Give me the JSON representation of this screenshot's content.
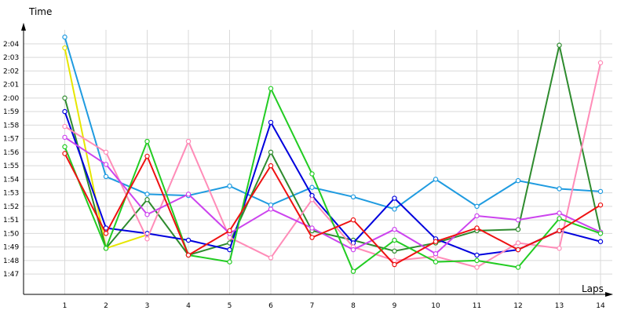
{
  "chart_data": {
    "type": "line",
    "xlabel": "Laps",
    "ylabel": "Time",
    "x": [
      1,
      2,
      3,
      4,
      5,
      6,
      7,
      8,
      9,
      10,
      11,
      12,
      13,
      14
    ],
    "xlim": [
      0,
      14.3
    ],
    "ylim": [
      105.5,
      125.5
    ],
    "y_ticks": [
      107,
      108,
      109,
      110,
      111,
      112,
      113,
      114,
      115,
      116,
      117,
      118,
      119,
      120,
      121,
      122,
      123,
      124
    ],
    "y_tick_labels": [
      "1:47",
      "1:48",
      "1:49",
      "1:50",
      "1:51",
      "1:52",
      "1:53",
      "1:54",
      "1:55",
      "1:56",
      "1:57",
      "1:58",
      "1:59",
      "2:00",
      "2:01",
      "2:02",
      "2:03",
      "2:04"
    ],
    "grid": true,
    "series": [
      {
        "color": "#1f9be0",
        "values": [
          124.5,
          114.2,
          112.9,
          112.8,
          113.5,
          112.1,
          113.4,
          112.7,
          111.8,
          114.0,
          112.0,
          113.9,
          113.3,
          113.1
        ]
      },
      {
        "color": "#e6e600",
        "values": [
          123.7,
          108.9,
          109.9,
          null,
          null,
          null,
          null,
          null,
          null,
          null,
          null,
          null,
          null,
          null
        ]
      },
      {
        "color": "#2e8b2e",
        "values": [
          120.0,
          108.9,
          112.5,
          108.4,
          109.3,
          116.0,
          110.2,
          109.5,
          108.7,
          109.3,
          110.2,
          110.3,
          123.9,
          110.1
        ]
      },
      {
        "color": "#0000dd",
        "values": [
          119.0,
          110.4,
          110.0,
          109.5,
          108.8,
          118.2,
          112.8,
          109.3,
          112.6,
          109.6,
          108.4,
          108.8,
          110.2,
          109.4
        ]
      },
      {
        "color": "#ff8cb8",
        "values": [
          117.9,
          116.0,
          109.6,
          116.8,
          109.7,
          108.2,
          112.5,
          109.0,
          108.0,
          108.3,
          107.5,
          109.3,
          108.9,
          122.6
        ]
      },
      {
        "color": "#cc44ee",
        "values": [
          117.1,
          115.1,
          111.4,
          112.9,
          110.0,
          111.8,
          110.4,
          108.8,
          110.3,
          108.5,
          111.3,
          111.0,
          111.5,
          110.1
        ]
      },
      {
        "color": "#22cc22",
        "values": [
          116.4,
          108.9,
          116.8,
          108.4,
          107.9,
          120.7,
          114.4,
          107.2,
          109.5,
          107.9,
          108.0,
          107.5,
          111.1,
          110.0
        ]
      },
      {
        "color": "#ee1111",
        "values": [
          115.9,
          110.0,
          115.7,
          108.4,
          110.2,
          115.0,
          109.7,
          111.0,
          107.7,
          109.4,
          110.4,
          108.8,
          110.2,
          112.1
        ]
      }
    ]
  }
}
